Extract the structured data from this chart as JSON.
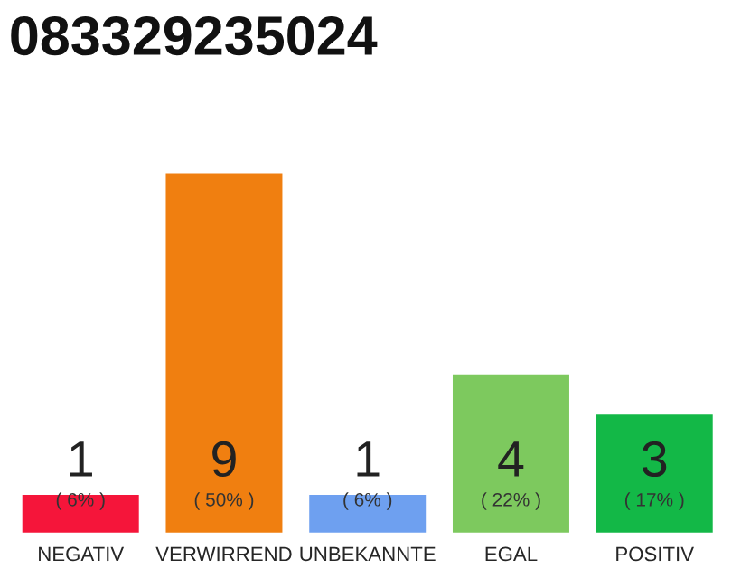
{
  "chart_data": {
    "type": "bar",
    "title": "083329235024",
    "categories": [
      "NEGATIV",
      "VERWIRREND",
      "UNBEKANNTE",
      "EGAL",
      "POSITIV"
    ],
    "values": [
      1,
      9,
      1,
      4,
      3
    ],
    "colors": [
      "#f5153a",
      "#f07f10",
      "#6ea0f0",
      "#7dc95e",
      "#13b847"
    ],
    "value_labels": [
      "1\n( 6% )",
      "9\n( 50% )",
      "1\n( 6% )",
      "4\n( 22% )",
      "3\n( 17% )"
    ]
  }
}
